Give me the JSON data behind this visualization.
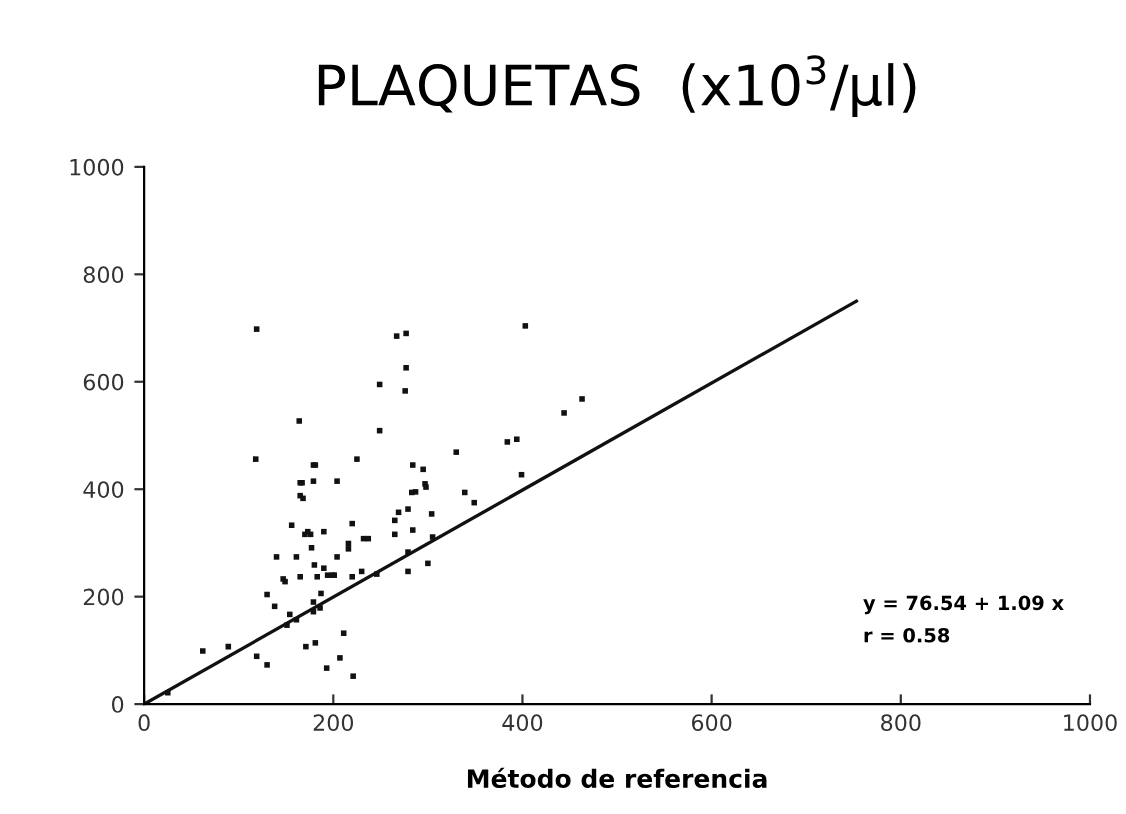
{
  "chart_data": {
    "type": "scatter",
    "title": "PLAQUETAS  (x10$^{3}$/µl)",
    "xlabel": "Método de referencia",
    "annotations": [
      "y = 76.54 + 1.09 x",
      "r = 0.58"
    ],
    "xlim": [
      0,
      1000
    ],
    "ylim": [
      0,
      1000
    ],
    "xticks": [
      0,
      200,
      400,
      600,
      800,
      1000
    ],
    "yticks": [
      0,
      200,
      400,
      600,
      800,
      1000
    ],
    "grid": false,
    "legend": false,
    "series": [
      {
        "marker": "square",
        "color": "#111111",
        "x": [
          119,
          118,
          62,
          89,
          25,
          164,
          165,
          165,
          168,
          179,
          181,
          179,
          167,
          204,
          225,
          156,
          173,
          170,
          176,
          190,
          177,
          140,
          161,
          220,
          216,
          216,
          204,
          232,
          237,
          180,
          190,
          194,
          199,
          201,
          183,
          165,
          147,
          149,
          220,
          230,
          246,
          130,
          138,
          187,
          186,
          154,
          151,
          161,
          179,
          179,
          171,
          181,
          211,
          193,
          207,
          221,
          119,
          130,
          249,
          249,
          267,
          277,
          277,
          276,
          330,
          339,
          349,
          384,
          394,
          265,
          269,
          279,
          265,
          284,
          304,
          305,
          279,
          279,
          300,
          284,
          295,
          297,
          298,
          287,
          283,
          403,
          444,
          463,
          399
        ],
        "values": [
          698,
          456,
          99,
          107,
          21,
          527,
          412,
          388,
          383,
          445,
          445,
          415,
          412,
          415,
          456,
          333,
          321,
          316,
          316,
          321,
          291,
          274,
          274,
          336,
          299,
          289,
          274,
          308,
          308,
          259,
          253,
          240,
          240,
          240,
          237,
          237,
          233,
          228,
          237,
          247,
          242,
          204,
          182,
          206,
          179,
          167,
          147,
          157,
          190,
          172,
          107,
          114,
          132,
          67,
          86,
          52,
          89,
          73,
          595,
          509,
          685,
          690,
          626,
          583,
          469,
          394,
          375,
          488,
          493,
          342,
          357,
          363,
          316,
          324,
          354,
          311,
          283,
          247,
          262,
          445,
          437,
          410,
          404,
          395,
          394,
          704,
          542,
          568,
          427
        ]
      },
      {
        "type": "line",
        "color": "#111111",
        "x": [
          0,
          753
        ],
        "values": [
          0,
          750
        ]
      }
    ]
  }
}
